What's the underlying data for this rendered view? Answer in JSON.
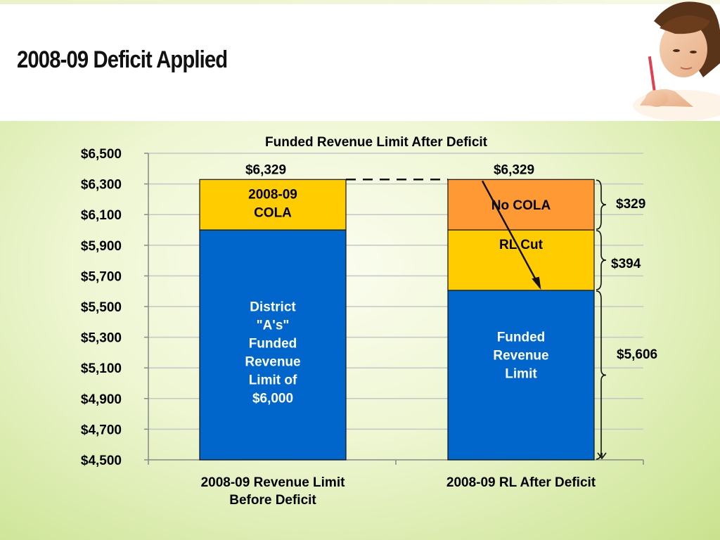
{
  "slide": {
    "title": "2008-09 Deficit Applied"
  },
  "colors": {
    "blue": "#0066cc",
    "yellow": "#ffcc00",
    "orange": "#ff9933",
    "grid": "#c6c6c6"
  },
  "chart_data": {
    "type": "bar",
    "stacked": true,
    "title": "Funded Revenue Limit After Deficit",
    "ylim": [
      4500,
      6500
    ],
    "ytick_labels": [
      "$4,500",
      "$4,700",
      "$4,900",
      "$5,100",
      "$5,300",
      "$5,500",
      "$5,700",
      "$5,900",
      "$6,100",
      "$6,300",
      "$6,500"
    ],
    "grid": true,
    "categories": [
      "2008-09 Revenue Limit Before Deficit",
      "2008-09 RL After Deficit"
    ],
    "category_lines": [
      [
        "2008-09 Revenue Limit",
        "Before Deficit"
      ],
      [
        "2008-09 RL After Deficit"
      ]
    ],
    "totals": [
      6329,
      6329
    ],
    "total_labels": [
      "$6,329",
      "$6,329"
    ],
    "stacks": [
      [
        {
          "from": 4500,
          "to": 6000,
          "color": "#0066cc",
          "text_color": "#ffffff",
          "label_lines": [
            "District",
            "\"A's\"",
            "Funded",
            "Revenue",
            "Limit of",
            "$6,000"
          ]
        },
        {
          "from": 6000,
          "to": 6329,
          "color": "#ffcc00",
          "text_color": "#000000",
          "label_lines": [
            "2008-09",
            "COLA"
          ]
        }
      ],
      [
        {
          "from": 4500,
          "to": 5606,
          "color": "#0066cc",
          "text_color": "#ffffff",
          "label_lines": [
            "Funded",
            "Revenue",
            "Limit"
          ]
        },
        {
          "from": 5606,
          "to": 6000,
          "color": "#ffcc00",
          "text_color": "#000000",
          "label_lines": [
            "RL Cut"
          ]
        },
        {
          "from": 6000,
          "to": 6329,
          "color": "#ff9933",
          "text_color": "#000000",
          "label_lines": [
            "No COLA"
          ]
        }
      ]
    ],
    "annotations": {
      "braces": [
        {
          "from": 6000,
          "to": 6329,
          "label": "$329"
        },
        {
          "from": 5606,
          "to": 6000,
          "label": "$394"
        },
        {
          "from": 4500,
          "to": 5606,
          "label": "$5,606"
        }
      ],
      "dashed_line_value": 6329,
      "arrow": {
        "from": 6329,
        "to": 5606
      }
    }
  }
}
